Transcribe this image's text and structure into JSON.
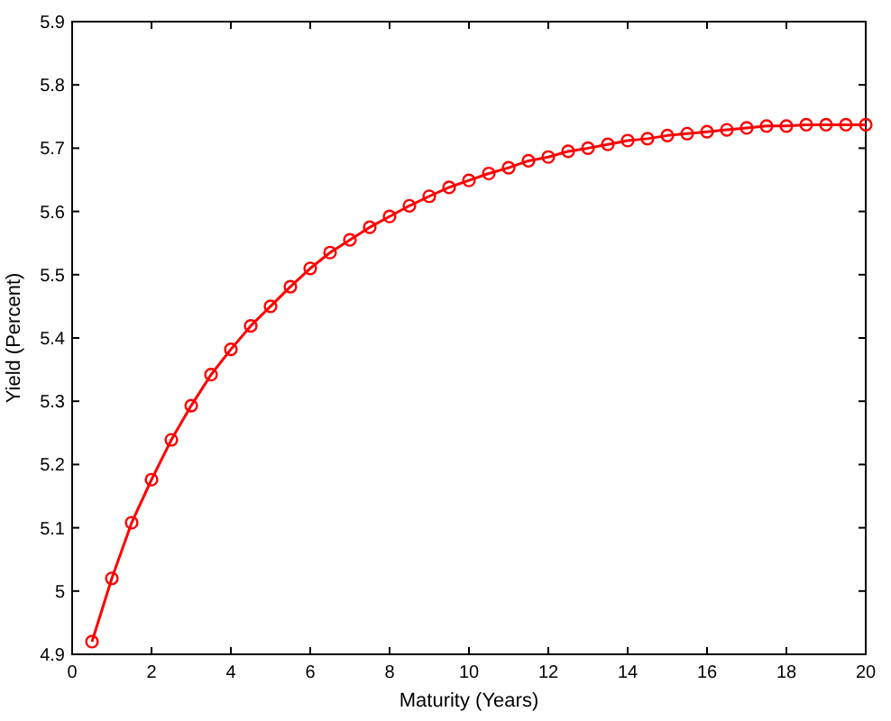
{
  "chart_data": {
    "type": "line",
    "xlabel": "Maturity (Years)",
    "ylabel": "Yield (Percent)",
    "x": [
      0.5,
      1,
      1.5,
      2,
      2.5,
      3,
      3.5,
      4,
      4.5,
      5,
      5.5,
      6,
      6.5,
      7,
      7.5,
      8,
      8.5,
      9,
      9.5,
      10,
      10.5,
      11,
      11.5,
      12,
      12.5,
      13,
      13.5,
      14,
      14.5,
      15,
      15.5,
      16,
      16.5,
      17,
      17.5,
      18,
      18.5,
      19,
      19.5,
      20
    ],
    "series": [
      {
        "color": "#ff0000",
        "values": [
          4.92,
          5.02,
          5.108,
          5.176,
          5.239,
          5.293,
          5.342,
          5.382,
          5.419,
          5.45,
          5.481,
          5.51,
          5.535,
          5.555,
          5.575,
          5.592,
          5.609,
          5.624,
          5.638,
          5.649,
          5.66,
          5.669,
          5.68,
          5.686,
          5.695,
          5.7,
          5.706,
          5.712,
          5.715,
          5.72,
          5.723,
          5.726,
          5.729,
          5.732,
          5.735,
          5.735,
          5.737,
          5.737,
          5.737,
          5.737
        ]
      }
    ],
    "xlim": [
      0,
      20
    ],
    "xticks": [
      0,
      2,
      4,
      6,
      8,
      10,
      12,
      14,
      16,
      18,
      20
    ],
    "ylim": [
      4.9,
      5.9
    ],
    "yticks": [
      4.9,
      5,
      5.1,
      5.2,
      5.3,
      5.4,
      5.5,
      5.6,
      5.7,
      5.8,
      5.9
    ],
    "grid": false,
    "marker": "circle",
    "line_style": "solid"
  }
}
